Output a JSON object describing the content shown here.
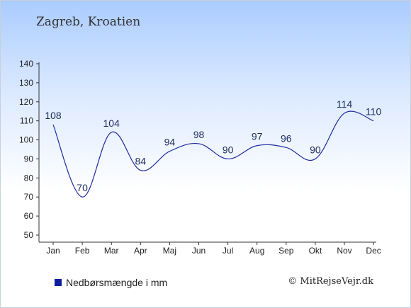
{
  "header": {
    "title": "Zagreb, Kroatien"
  },
  "legend": {
    "label": "Nedbørsmængde i mm"
  },
  "footer": {
    "credit": "© MitRejseVejr.dk"
  },
  "colors": {
    "line": "#1f2b9c",
    "swatch": "#0d1f9c",
    "label": "#1c2c5c"
  },
  "chart_data": {
    "type": "line",
    "categories": [
      "Jan",
      "Feb",
      "Mar",
      "Apr",
      "Maj",
      "Jun",
      "Jul",
      "Aug",
      "Sep",
      "Okt",
      "Nov",
      "Dec"
    ],
    "series": [
      {
        "name": "Nedbørsmængde i mm",
        "values": [
          108,
          70,
          104,
          84,
          94,
          98,
          90,
          97,
          96,
          90,
          114,
          110
        ]
      }
    ],
    "data_labels": [
      "108",
      "70",
      "104",
      "84",
      "94",
      "98",
      "90",
      "97",
      "96",
      "90",
      "114",
      "110"
    ],
    "ylim": [
      50,
      140
    ],
    "yticks": [
      50,
      60,
      70,
      80,
      90,
      100,
      110,
      120,
      130,
      140
    ],
    "ytick_labels": [
      "50",
      "60",
      "70",
      "80",
      "90",
      "100",
      "110",
      "120",
      "130",
      "140"
    ],
    "grid": false,
    "legend_position": "bottom-left"
  }
}
